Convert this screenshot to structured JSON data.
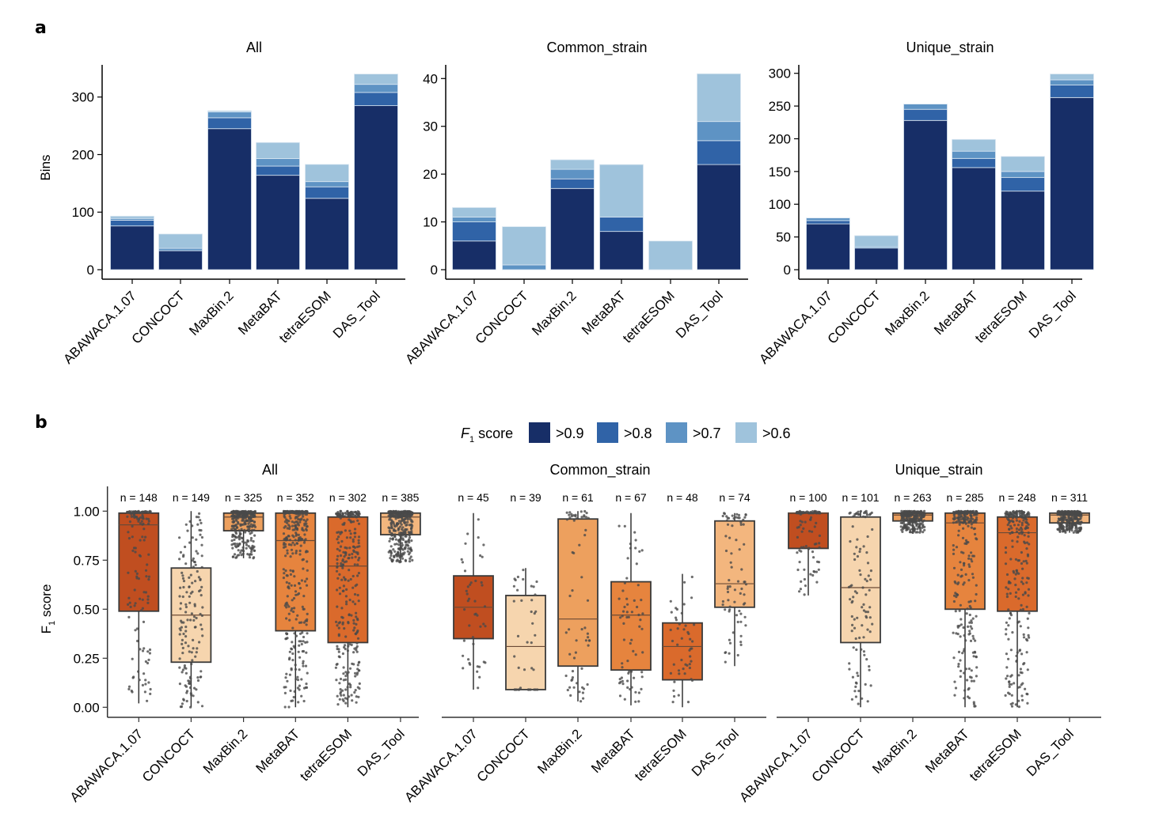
{
  "panel_labels": {
    "a": "a",
    "b": "b"
  },
  "legend": {
    "title_italic": "F",
    "title_sub": "1",
    "title_rest": "score",
    "entries": [
      {
        "label": ">0.9",
        "color": "#172e67"
      },
      {
        "label": ">0.8",
        "color": "#3063a7"
      },
      {
        "label": ">0.7",
        "color": "#5e93c4"
      },
      {
        "label": ">0.6",
        "color": "#9fc3dc"
      }
    ]
  },
  "chart_data": [
    {
      "panel": "a",
      "type": "bar",
      "stacked": true,
      "ylabel": "Bins",
      "categories": [
        "ABAWACA.1.07",
        "CONCOCT",
        "MaxBin.2",
        "MetaBAT",
        "tetraESOM",
        "DAS_Tool"
      ],
      "series_names": [
        ">0.9",
        ">0.8",
        ">0.7",
        ">0.6"
      ],
      "facets": [
        {
          "title": "All",
          "ylim": [
            0,
            350
          ],
          "yticks": [
            0,
            100,
            200,
            300
          ],
          "series": [
            {
              "name": ">0.9",
              "values": [
                76,
                33,
                245,
                164,
                124,
                285
              ]
            },
            {
              "name": ">0.8",
              "values": [
                10,
                0,
                19,
                16,
                20,
                23
              ]
            },
            {
              "name": ">0.7",
              "values": [
                3,
                4,
                10,
                13,
                9,
                14
              ]
            },
            {
              "name": ">0.6",
              "values": [
                4,
                25,
                2,
                28,
                30,
                18
              ]
            }
          ]
        },
        {
          "title": "Common_strain",
          "ylim": [
            0,
            43
          ],
          "yticks": [
            0,
            10,
            20,
            30,
            40
          ],
          "series": [
            {
              "name": ">0.9",
              "values": [
                6,
                0,
                17,
                8,
                0,
                22
              ]
            },
            {
              "name": ">0.8",
              "values": [
                4,
                0,
                2,
                3,
                0,
                5
              ]
            },
            {
              "name": ">0.7",
              "values": [
                1,
                1,
                2,
                0,
                0,
                4
              ]
            },
            {
              "name": ">0.6",
              "values": [
                2,
                8,
                2,
                11,
                6,
                10
              ]
            }
          ]
        },
        {
          "title": "Unique_strain",
          "ylim": [
            0,
            315
          ],
          "yticks": [
            0,
            50,
            100,
            150,
            200,
            250,
            300
          ],
          "series": [
            {
              "name": ">0.9",
              "values": [
                70,
                33,
                228,
                156,
                120,
                263
              ]
            },
            {
              "name": ">0.8",
              "values": [
                5,
                0,
                17,
                14,
                21,
                19
              ]
            },
            {
              "name": ">0.7",
              "values": [
                4,
                2,
                8,
                11,
                9,
                8
              ]
            },
            {
              "name": ">0.6",
              "values": [
                0,
                17,
                0,
                18,
                23,
                9
              ]
            }
          ]
        }
      ]
    },
    {
      "panel": "b",
      "type": "box",
      "ylabel": "F1 score",
      "ylabel_main": "F",
      "ylabel_sub": "1",
      "ylabel_rest": " score",
      "ylim": [
        0,
        1.05
      ],
      "yticks": [
        "0.00",
        "0.25",
        "0.50",
        "0.75",
        "1.00"
      ],
      "categories": [
        "ABAWACA.1.07",
        "CONCOCT",
        "MaxBin.2",
        "MetaBAT",
        "tetraESOM",
        "DAS_Tool"
      ],
      "colors": [
        "#c04e20",
        "#f6d5ae",
        "#eda05e",
        "#e6843e",
        "#da6a2c",
        "#f3b67e"
      ],
      "point_color": "#4a4a4a",
      "facets": [
        {
          "title": "All",
          "boxes": [
            {
              "n": 148,
              "n_label": "n = 148",
              "whisker_low": 0.02,
              "q1": 0.49,
              "median": 0.93,
              "q3": 0.99,
              "whisker_high": 1.0
            },
            {
              "n": 149,
              "n_label": "n = 149",
              "whisker_low": 0.0,
              "q1": 0.23,
              "median": 0.47,
              "q3": 0.71,
              "whisker_high": 1.0
            },
            {
              "n": 325,
              "n_label": "n = 325",
              "whisker_low": 0.76,
              "q1": 0.9,
              "median": 0.97,
              "q3": 0.99,
              "whisker_high": 1.0
            },
            {
              "n": 352,
              "n_label": "n = 352",
              "whisker_low": 0.0,
              "q1": 0.39,
              "median": 0.85,
              "q3": 0.99,
              "whisker_high": 1.0
            },
            {
              "n": 302,
              "n_label": "n = 302",
              "whisker_low": 0.0,
              "q1": 0.33,
              "median": 0.72,
              "q3": 0.97,
              "whisker_high": 1.0
            },
            {
              "n": 385,
              "n_label": "n = 385",
              "whisker_low": 0.74,
              "q1": 0.88,
              "median": 0.97,
              "q3": 0.99,
              "whisker_high": 1.0
            }
          ]
        },
        {
          "title": "Common_strain",
          "boxes": [
            {
              "n": 45,
              "n_label": "n = 45",
              "whisker_low": 0.09,
              "q1": 0.35,
              "median": 0.51,
              "q3": 0.67,
              "whisker_high": 0.99
            },
            {
              "n": 39,
              "n_label": "n = 39",
              "whisker_low": 0.09,
              "q1": 0.09,
              "median": 0.31,
              "q3": 0.57,
              "whisker_high": 0.71
            },
            {
              "n": 61,
              "n_label": "n = 61",
              "whisker_low": 0.03,
              "q1": 0.21,
              "median": 0.45,
              "q3": 0.96,
              "whisker_high": 1.0
            },
            {
              "n": 67,
              "n_label": "n = 67",
              "whisker_low": 0.01,
              "q1": 0.19,
              "median": 0.47,
              "q3": 0.64,
              "whisker_high": 0.99
            },
            {
              "n": 48,
              "n_label": "n = 48",
              "whisker_low": 0.0,
              "q1": 0.14,
              "median": 0.31,
              "q3": 0.43,
              "whisker_high": 0.68
            },
            {
              "n": 74,
              "n_label": "n = 74",
              "whisker_low": 0.21,
              "q1": 0.51,
              "median": 0.63,
              "q3": 0.95,
              "whisker_high": 0.99
            }
          ]
        },
        {
          "title": "Unique_strain",
          "boxes": [
            {
              "n": 100,
              "n_label": "n = 100",
              "whisker_low": 0.57,
              "q1": 0.81,
              "median": 0.99,
              "q3": 0.99,
              "whisker_high": 1.0
            },
            {
              "n": 101,
              "n_label": "n = 101",
              "whisker_low": 0.0,
              "q1": 0.33,
              "median": 0.61,
              "q3": 0.97,
              "whisker_high": 1.0
            },
            {
              "n": 263,
              "n_label": "n = 263",
              "whisker_low": 0.89,
              "q1": 0.95,
              "median": 0.98,
              "q3": 0.99,
              "whisker_high": 1.0
            },
            {
              "n": 285,
              "n_label": "n = 285",
              "whisker_low": 0.0,
              "q1": 0.5,
              "median": 0.94,
              "q3": 0.99,
              "whisker_high": 1.0
            },
            {
              "n": 248,
              "n_label": "n = 248",
              "whisker_low": 0.0,
              "q1": 0.49,
              "median": 0.89,
              "q3": 0.97,
              "whisker_high": 1.0
            },
            {
              "n": 311,
              "n_label": "n = 311",
              "whisker_low": 0.89,
              "q1": 0.94,
              "median": 0.98,
              "q3": 0.99,
              "whisker_high": 1.0
            }
          ]
        }
      ]
    }
  ]
}
